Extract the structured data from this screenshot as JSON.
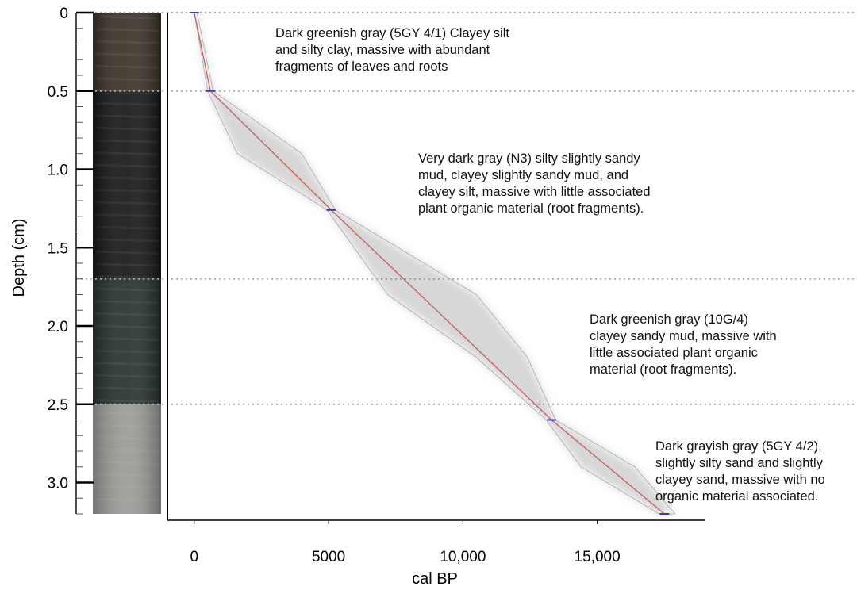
{
  "chart_data": {
    "type": "line",
    "title": "",
    "xlabel": "cal BP",
    "ylabel": "Depth (cm)",
    "xlim": [
      -1000,
      19000
    ],
    "ylim": [
      3.2,
      0
    ],
    "x_ticks": [
      {
        "value": 0,
        "label": "0"
      },
      {
        "value": 5000,
        "label": "5000"
      },
      {
        "value": 10000,
        "label": "10,000"
      },
      {
        "value": 15000,
        "label": "15,000"
      }
    ],
    "y_ticks": [
      {
        "value": 0,
        "label": "0"
      },
      {
        "value": 0.5,
        "label": "0.5"
      },
      {
        "value": 1.0,
        "label": "1.0"
      },
      {
        "value": 1.5,
        "label": "1.5"
      },
      {
        "value": 2.0,
        "label": "2.0"
      },
      {
        "value": 2.5,
        "label": "2.5"
      },
      {
        "value": 3.0,
        "label": "3.0"
      }
    ],
    "series": [
      {
        "x": [
          0,
          600,
          5100,
          13300,
          17500
        ],
        "y": [
          0,
          0.5,
          1.26,
          2.6,
          3.2
        ],
        "color": "#d9534f"
      }
    ],
    "uncertainty_envelope": {
      "depth": [
        0,
        0.5,
        0.9,
        1.26,
        1.8,
        2.2,
        2.6,
        2.9,
        3.2
      ],
      "min_age": [
        0,
        500,
        1600,
        4950,
        7200,
        10500,
        13100,
        14400,
        17300
      ],
      "max_age": [
        100,
        700,
        4000,
        5250,
        10500,
        12400,
        13450,
        16400,
        17900
      ]
    },
    "unit_boundaries": [
      0,
      0.5,
      1.7,
      2.5
    ],
    "units": [
      {
        "lines": [
          "Dark greenish gray (5GY 4/1) Clayey silt",
          "and silty clay, massive with abundant",
          "fragments of leaves and roots"
        ],
        "color": "#3a3127"
      },
      {
        "lines": [
          "Very dark gray (N3) silty slightly sandy",
          "mud, clayey slightly sandy mud, and",
          "clayey silt, massive with little associated",
          "plant organic material (root fragments)."
        ],
        "color": "#141617"
      },
      {
        "lines": [
          "Dark greenish gray (10G/4)",
          "clayey sandy mud, massive with",
          "little associated plant organic",
          "material (root fragments)."
        ],
        "color": "#26302f"
      },
      {
        "lines": [
          "Dark grayish gray (5GY 4/2),",
          "slightly silty sand and slightly",
          "clayey sand, massive with no",
          "organic material associated."
        ],
        "color": "#9a9b97"
      }
    ]
  }
}
